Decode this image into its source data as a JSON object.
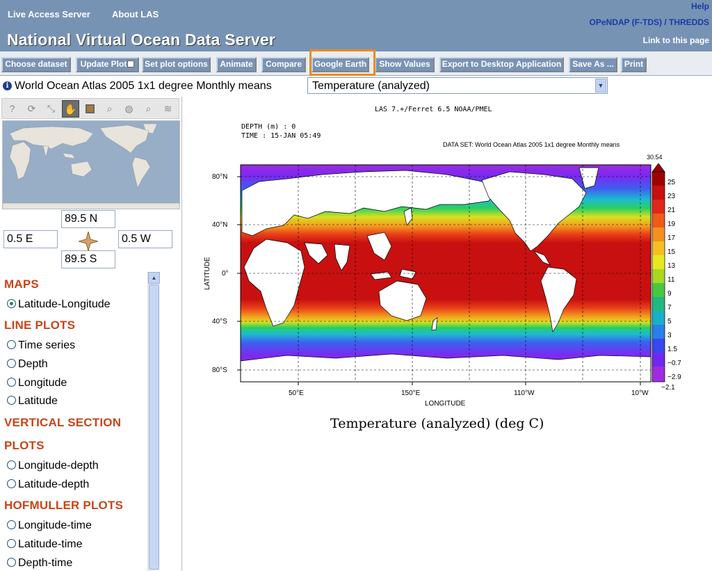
{
  "header": {
    "links": {
      "live_access_server": "Live Access Server",
      "about_las": "About LAS"
    },
    "title": "National Virtual Ocean Data Server",
    "help": "Help",
    "opendap": "OPeNDAP (F-TDS) / THREDDS",
    "link_page": "Link to this page"
  },
  "toolbar": {
    "choose_dataset": "Choose dataset",
    "update_plot": "Update Plot",
    "set_plot_options": "Set plot options",
    "animate": "Animate",
    "compare": "Compare",
    "google_earth": "Google Earth",
    "show_values": "Show Values",
    "export": "Export to Desktop Application",
    "save_as": "Save As ...",
    "print": "Print"
  },
  "dataset": {
    "info_icon": "i",
    "name": "World Ocean Atlas 2005 1x1 degree Monthly means",
    "variable": "Temperature (analyzed)"
  },
  "region": {
    "north": "89.5 N",
    "south": "89.5 S",
    "east": "0.5 E",
    "west": "0.5 W"
  },
  "map_tools": [
    "help-icon",
    "refresh-icon",
    "zoom-box-icon",
    "pan-hand-icon",
    "select-box-icon",
    "zoom-in-icon",
    "globe-icon",
    "zoom-out-icon",
    "layers-icon"
  ],
  "plot_types": {
    "maps_label": "MAPS",
    "lat_lon": "Latitude-Longitude",
    "line_label": "LINE PLOTS",
    "time_series": "Time series",
    "depth": "Depth",
    "longitude": "Longitude",
    "latitude": "Latitude",
    "vertical_label_1": "VERTICAL SECTION",
    "vertical_label_2": "PLOTS",
    "lon_depth": "Longitude-depth",
    "lat_depth": "Latitude-depth",
    "hofmuller_label": "HOFMULLER PLOTS",
    "lon_time": "Longitude-time",
    "lat_time": "Latitude-time",
    "depth_time": "Depth-time"
  },
  "plot": {
    "header": "LAS 7.+/Ferret 6.5     NOAA/PMEL",
    "depth_line": "DEPTH (m) : 0",
    "time_line": "TIME : 15-JAN 05:49",
    "dataset_line": "DATA SET: World Ocean Atlas 2005 1x1 degree Monthly means",
    "ylabel": "LATITUDE",
    "xlabel": "LONGITUDE",
    "title": "Temperature (analyzed) (deg C)",
    "lat_ticks": [
      "80°N",
      "40°N",
      "0°",
      "40°S",
      "80°S"
    ],
    "lon_ticks": [
      "50°E",
      "150°E",
      "110°W",
      "10°W"
    ],
    "colorbar_max": "30.54",
    "colorbar_min": "−2.1",
    "colorbar_labels": [
      "25",
      "23",
      "21",
      "19",
      "17",
      "15",
      "13",
      "11",
      "9",
      "7",
      "5",
      "3",
      "1.5",
      "−0.7",
      "−2.9"
    ]
  },
  "colors": {
    "header_bg": "#7793b4",
    "button_bg": "#7993b4",
    "highlight": "#f08a1c",
    "section_red": "#c84518",
    "link_blue": "#1a3aa8"
  }
}
